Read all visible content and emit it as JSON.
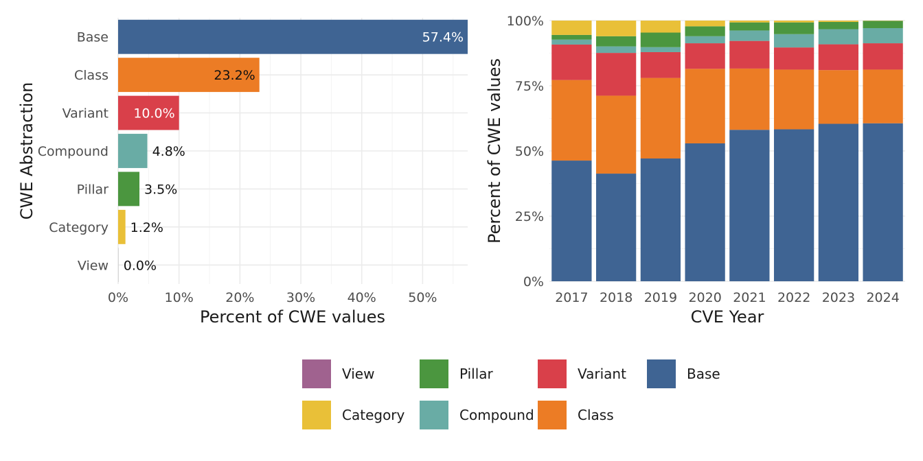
{
  "colors": {
    "View": "#a0628f",
    "Pillar": "#4b963f",
    "Variant": "#d9404a",
    "Base": "#3f6493",
    "Category": "#e9c038",
    "Compound": "#69aca5",
    "Class": "#ec7c25"
  },
  "chart_data": [
    {
      "type": "bar",
      "orientation": "horizontal",
      "categories": [
        "Base",
        "Class",
        "Variant",
        "Compound",
        "Pillar",
        "Category",
        "View"
      ],
      "values": [
        57.4,
        23.2,
        10.0,
        4.8,
        3.5,
        1.2,
        0.0
      ],
      "data_labels": [
        "57.4%",
        "23.2%",
        "10.0%",
        "4.8%",
        "3.5%",
        "1.2%",
        "0.0%"
      ],
      "xlabel": "Percent of CWE values",
      "ylabel": "CWE Abstraction",
      "xlim": [
        0,
        57.4
      ],
      "xticks": [
        0,
        10,
        20,
        30,
        40,
        50
      ],
      "xtick_labels": [
        "0%",
        "10%",
        "20%",
        "30%",
        "40%",
        "50%"
      ],
      "grid": true
    },
    {
      "type": "bar",
      "stacked": true,
      "percent": true,
      "categories": [
        "2017",
        "2018",
        "2019",
        "2020",
        "2021",
        "2022",
        "2023",
        "2024"
      ],
      "series": [
        {
          "name": "Base",
          "values": [
            46.3,
            41.3,
            47.1,
            52.9,
            58.1,
            58.3,
            60.4,
            60.6
          ]
        },
        {
          "name": "Class",
          "values": [
            30.9,
            29.9,
            30.9,
            28.6,
            23.5,
            22.9,
            20.6,
            20.6
          ]
        },
        {
          "name": "Variant",
          "values": [
            13.6,
            16.4,
            9.9,
            9.8,
            10.6,
            8.5,
            9.9,
            10.1
          ]
        },
        {
          "name": "Compound",
          "values": [
            1.9,
            2.5,
            1.9,
            2.7,
            4.0,
            5.1,
            5.8,
            5.8
          ]
        },
        {
          "name": "Pillar",
          "values": [
            1.8,
            3.9,
            5.6,
            3.8,
            3.1,
            4.5,
            2.8,
            2.8
          ]
        },
        {
          "name": "Category",
          "values": [
            5.5,
            6.0,
            4.6,
            2.2,
            0.7,
            0.7,
            0.5,
            0.1
          ]
        },
        {
          "name": "View",
          "values": [
            0,
            0,
            0,
            0,
            0,
            0,
            0,
            0
          ]
        }
      ],
      "xlabel": "CVE Year",
      "ylabel": "Percent of CWE values",
      "ylim": [
        0,
        100
      ],
      "yticks": [
        0,
        25,
        50,
        75,
        100
      ],
      "ytick_labels": [
        "0%",
        "25%",
        "50%",
        "75%",
        "100%"
      ],
      "grid": true
    }
  ],
  "legend": {
    "placement": "bottom",
    "items": [
      "View",
      "Pillar",
      "Variant",
      "Base",
      "Category",
      "Compound",
      "Class"
    ]
  }
}
